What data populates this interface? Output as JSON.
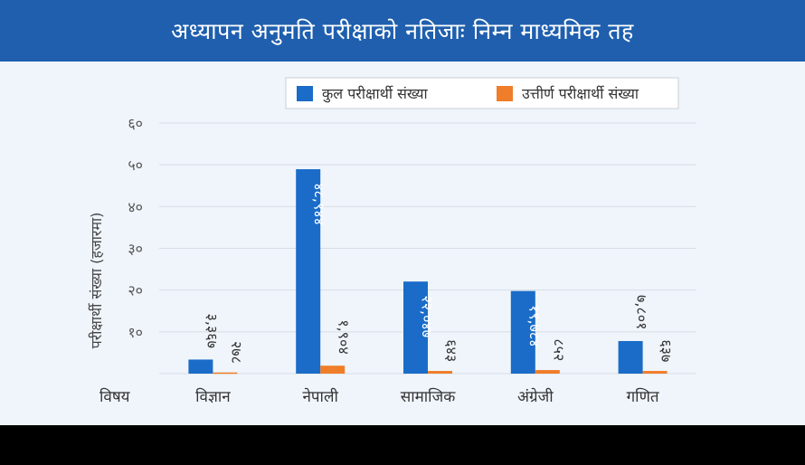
{
  "header": {
    "title": "अध्यापन अनुमति परीक्षाको नतिजाः निम्न माध्यमिक तह"
  },
  "colors": {
    "header_bg": "#1f5fae",
    "series_total": "#1a6cc8",
    "series_passed": "#f07d2a",
    "panel_bg": "#eff5fb"
  },
  "chart_data": {
    "type": "bar",
    "title": "",
    "xlabel": "विषय",
    "ylabel": "परीक्षार्थी संख्या (हजारमा)",
    "ylim": [
      0,
      60
    ],
    "yticks": [
      10,
      20,
      30,
      40,
      50,
      60
    ],
    "ytick_labels": [
      "१०",
      "२०",
      "३०",
      "४०",
      "५०",
      "६०"
    ],
    "grid": true,
    "legend_position": "top-right",
    "categories": [
      "विज्ञान",
      "नेपाली",
      "सामाजिक",
      "अंग्रेजी",
      "गणित"
    ],
    "series": [
      {
        "name": "कुल परीक्षार्थी संख्या",
        "values": [
          3.367,
          48.944,
          22.047,
          19.784,
          7.801
        ],
        "labels": [
          "३,३६७",
          "४८,९४४",
          "२२,०४७",
          "१९,७८४",
          "७,८०१"
        ]
      },
      {
        "name": "उत्तीर्ण परीक्षार्थी संख्या",
        "values": [
          0.278,
          1.904,
          0.643,
          0.852,
          0.637
        ],
        "labels": [
          "२७८",
          "१,९०४",
          "६४३",
          "८५२",
          "६३७"
        ]
      }
    ]
  }
}
